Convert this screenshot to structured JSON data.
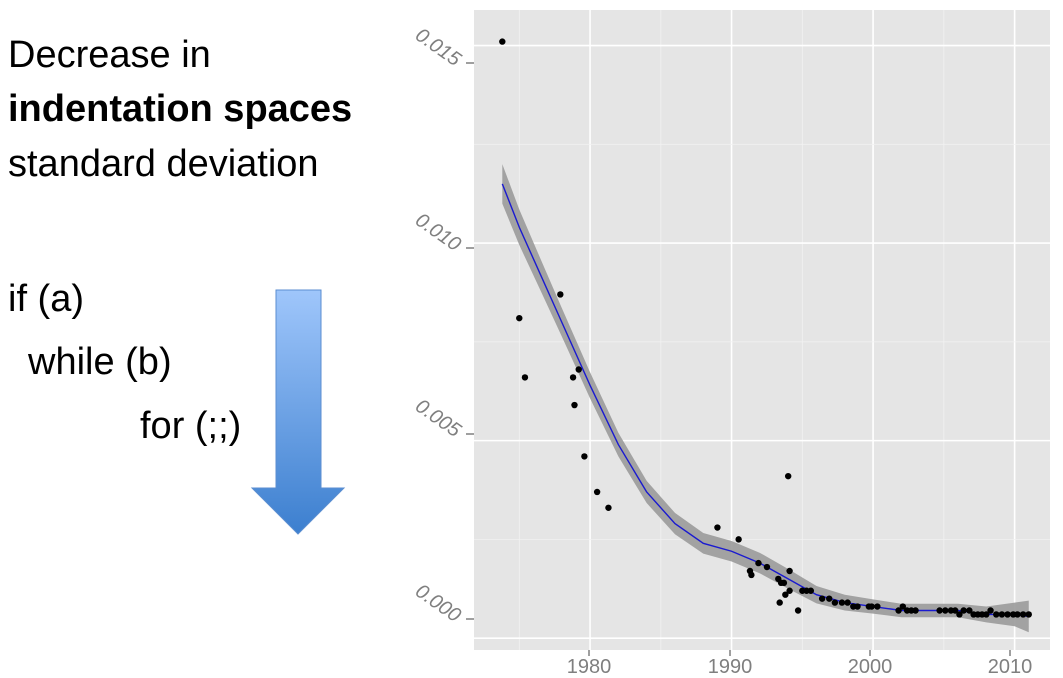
{
  "slide": {
    "title_line1": "Decrease in",
    "title_line2": "indentation spaces",
    "title_line3": "standard deviation",
    "code_lines": [
      "if (a)",
      "while (b)",
      "for (;;)"
    ]
  },
  "colors": {
    "panel_bg": "#e5e5e5",
    "grid": "#ffffff",
    "points": "#000000",
    "smooth_line": "#1a1ad0",
    "confidence_band": "#9a9a9a",
    "arrow_top": "#9fc6fb",
    "arrow_bottom": "#3c7fcf"
  },
  "chart_data": {
    "type": "scatter",
    "title": "",
    "xlabel": "",
    "ylabel": "",
    "xlim": [
      1971.8,
      2012.5
    ],
    "ylim": [
      -0.0003,
      0.0159
    ],
    "x_ticks": [
      1980,
      1990,
      2000,
      2010
    ],
    "y_ticks": [
      0.0,
      0.005,
      0.01,
      0.015
    ],
    "x_tick_labels": [
      "1980",
      "1990",
      "2000",
      "2010"
    ],
    "y_tick_labels": [
      "0.000",
      "0.005",
      "0.010",
      "0.015"
    ],
    "grid": true,
    "points": [
      [
        1973.8,
        0.0151
      ],
      [
        1975.0,
        0.0081
      ],
      [
        1975.4,
        0.0066
      ],
      [
        1977.9,
        0.0087
      ],
      [
        1978.8,
        0.0066
      ],
      [
        1979.2,
        0.0068
      ],
      [
        1978.9,
        0.0059
      ],
      [
        1979.6,
        0.0046
      ],
      [
        1980.5,
        0.0037
      ],
      [
        1981.3,
        0.0033
      ],
      [
        1989.0,
        0.0028
      ],
      [
        1990.5,
        0.0025
      ],
      [
        1991.3,
        0.0017
      ],
      [
        1991.4,
        0.0016
      ],
      [
        1991.9,
        0.0019
      ],
      [
        1992.5,
        0.0018
      ],
      [
        1993.3,
        0.0015
      ],
      [
        1993.5,
        0.0014
      ],
      [
        1993.7,
        0.0014
      ],
      [
        1993.4,
        0.0009
      ],
      [
        1993.8,
        0.0011
      ],
      [
        1994.0,
        0.0041
      ],
      [
        1994.1,
        0.0017
      ],
      [
        1994.1,
        0.0012
      ],
      [
        1994.7,
        0.0007
      ],
      [
        1995.0,
        0.0012
      ],
      [
        1995.3,
        0.0012
      ],
      [
        1995.6,
        0.0012
      ],
      [
        1996.4,
        0.001
      ],
      [
        1996.9,
        0.001
      ],
      [
        1997.3,
        0.0009
      ],
      [
        1997.8,
        0.0009
      ],
      [
        1998.2,
        0.0009
      ],
      [
        1998.6,
        0.0008
      ],
      [
        1998.9,
        0.0008
      ],
      [
        1999.7,
        0.0008
      ],
      [
        1999.9,
        0.0008
      ],
      [
        2000.3,
        0.0008
      ],
      [
        2001.8,
        0.0007
      ],
      [
        2002.1,
        0.0008
      ],
      [
        2002.4,
        0.0007
      ],
      [
        2002.7,
        0.0007
      ],
      [
        2003.0,
        0.0007
      ],
      [
        2004.7,
        0.0007
      ],
      [
        2005.1,
        0.0007
      ],
      [
        2005.5,
        0.0007
      ],
      [
        2005.8,
        0.0007
      ],
      [
        2006.1,
        0.0006
      ],
      [
        2006.4,
        0.0007
      ],
      [
        2006.8,
        0.0007
      ],
      [
        2007.1,
        0.0006
      ],
      [
        2007.4,
        0.0006
      ],
      [
        2007.7,
        0.0006
      ],
      [
        2008.0,
        0.0006
      ],
      [
        2008.3,
        0.0007
      ],
      [
        2008.7,
        0.0006
      ],
      [
        2009.1,
        0.0006
      ],
      [
        2009.5,
        0.0006
      ],
      [
        2009.9,
        0.0006
      ],
      [
        2010.2,
        0.0006
      ],
      [
        2010.6,
        0.0006
      ],
      [
        2011.0,
        0.0006
      ]
    ],
    "smooth": [
      [
        1973.8,
        0.0115
      ],
      [
        1975.0,
        0.0104
      ],
      [
        1976.5,
        0.0092
      ],
      [
        1978.0,
        0.008
      ],
      [
        1980.0,
        0.0064
      ],
      [
        1982.0,
        0.0049
      ],
      [
        1984.0,
        0.0037
      ],
      [
        1986.0,
        0.0029
      ],
      [
        1988.0,
        0.0024
      ],
      [
        1990.0,
        0.0022
      ],
      [
        1992.0,
        0.0019
      ],
      [
        1994.0,
        0.0015
      ],
      [
        1996.0,
        0.0011
      ],
      [
        1998.0,
        0.0009
      ],
      [
        2000.0,
        0.0008
      ],
      [
        2002.0,
        0.0007
      ],
      [
        2004.0,
        0.0007
      ],
      [
        2006.0,
        0.0007
      ],
      [
        2008.0,
        0.0006
      ],
      [
        2010.0,
        0.0006
      ],
      [
        2011.0,
        0.00055
      ]
    ],
    "smooth_halfwidth": [
      0.0005,
      0.00045,
      0.0004,
      0.00036,
      0.00033,
      0.0003,
      0.00028,
      0.00027,
      0.00026,
      0.00026,
      0.00026,
      0.00025,
      0.00022,
      0.0002,
      0.00018,
      0.00017,
      0.00017,
      0.00017,
      0.0002,
      0.0003,
      0.0004
    ]
  }
}
